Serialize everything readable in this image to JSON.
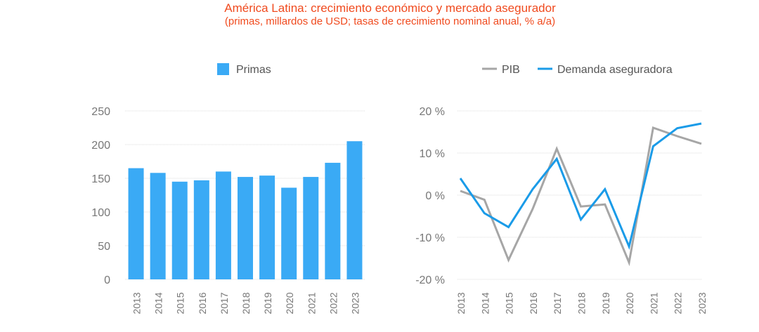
{
  "title": "América Latina: crecimiento económico y mercado asegurador",
  "subtitle": "(primas, millardos de USD; tasas de crecimiento nominal anual, % a/a)",
  "colors": {
    "title": "#f04a1e",
    "bar": "#3aaaf5",
    "pib": "#a6a6a6",
    "demanda": "#1a9be8"
  },
  "chart_data": [
    {
      "type": "bar",
      "legend": [
        "Primas"
      ],
      "categories": [
        "2013",
        "2014",
        "2015",
        "2016",
        "2017",
        "2018",
        "2019",
        "2020",
        "2021",
        "2022",
        "2023"
      ],
      "values": [
        165,
        158,
        145,
        147,
        160,
        152,
        154,
        136,
        152,
        173,
        205
      ],
      "ylim": [
        0,
        250
      ],
      "yticks": [
        "0",
        "50",
        "100",
        "150",
        "200",
        "250"
      ],
      "grid": true,
      "legend_position": "top"
    },
    {
      "type": "line",
      "categories": [
        "2013",
        "2014",
        "2015",
        "2016",
        "2017",
        "2018",
        "2019",
        "2020",
        "2021",
        "2022",
        "2023"
      ],
      "series": [
        {
          "name": "PIB",
          "values": [
            1,
            -1.1,
            -15.4,
            -3.3,
            11,
            -2.7,
            -2.2,
            -16,
            16,
            14,
            12.2
          ]
        },
        {
          "name": "Demanda aseguradora",
          "values": [
            4,
            -4.3,
            -7.6,
            1.4,
            8.6,
            -5.8,
            1.4,
            -12.2,
            11.6,
            15.9,
            17
          ]
        }
      ],
      "ylim": [
        -20,
        20
      ],
      "yticks": [
        "-20 %",
        "-10 %",
        "0 %",
        "10 %",
        "20 %"
      ],
      "grid": true,
      "legend_position": "top"
    }
  ]
}
